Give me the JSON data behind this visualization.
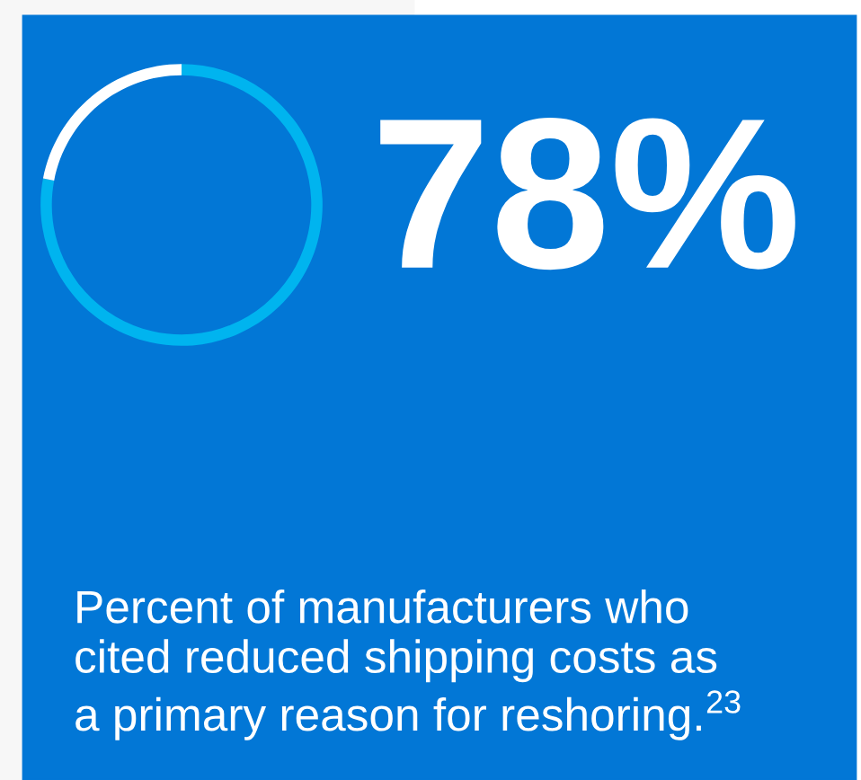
{
  "chart_data": {
    "type": "donut",
    "title": "78%",
    "categories": [
      null,
      null
    ],
    "values": [
      78,
      22
    ],
    "colors": [
      "#00b4ef",
      "#ffffff"
    ],
    "annotations": [
      "Percent of manufacturers who\ncited reduced shipping costs as\na primary reason for reshoring.$^{23}$"
    ]
  }
}
